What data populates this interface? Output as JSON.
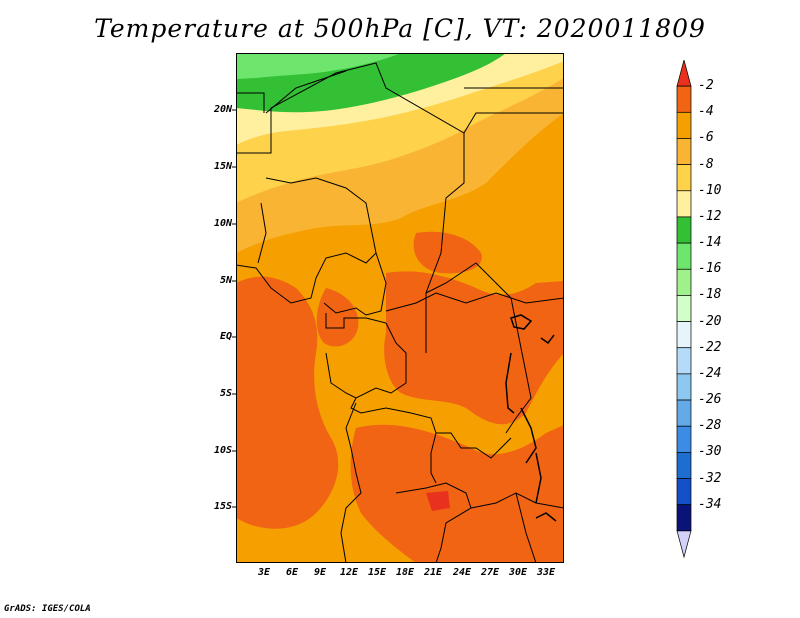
{
  "title": "Temperature at 500hPa [C], VT: 2020011809",
  "credit": "GrADS: IGES/COLA",
  "y_axis_labels": [
    "20N",
    "15N",
    "10N",
    "5N",
    "EQ",
    "5S",
    "10S",
    "15S"
  ],
  "x_axis_labels": [
    "3E",
    "6E",
    "9E",
    "12E",
    "15E",
    "18E",
    "21E",
    "24E",
    "27E",
    "30E",
    "33E"
  ],
  "colorbar": {
    "labels": [
      "-2",
      "-4",
      "-6",
      "-8",
      "-10",
      "-12",
      "-14",
      "-16",
      "-18",
      "-20",
      "-22",
      "-24",
      "-26",
      "-28",
      "-30",
      "-32",
      "-34"
    ],
    "colors": [
      "#e8321e",
      "#f06414",
      "#f5a000",
      "#f8b432",
      "#fed24a",
      "#fff0a0",
      "#34c034",
      "#6ee66e",
      "#a0f08c",
      "#d2ffc8",
      "#e6f5fc",
      "#b4dcf8",
      "#8cc8f0",
      "#64aae6",
      "#3c8ce6",
      "#1e6ed2",
      "#1450c8",
      "#0a1478",
      "#d2d2f8"
    ]
  },
  "colors": {
    "t2": "#f06414",
    "t4": "#f5a000",
    "t6": "#f8b432",
    "t8": "#fed24a",
    "t10": "#fff0a0",
    "t12": "#34c034",
    "t14": "#6ee66e",
    "border": "#000000",
    "lake": "#1e1e1e"
  }
}
